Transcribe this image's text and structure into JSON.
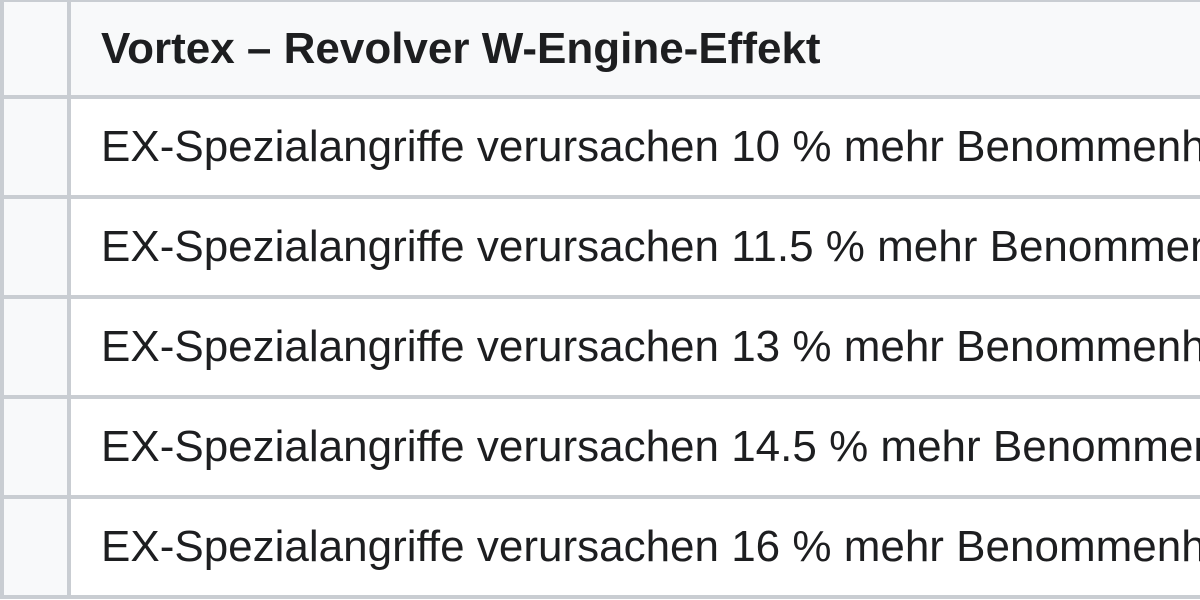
{
  "table": {
    "header": "Vortex – Revolver W-Engine-Effekt",
    "rows": [
      {
        "text": "EX-Spezialangriffe verursachen 10 % mehr Benommenh"
      },
      {
        "text": "EX-Spezialangriffe verursachen 11.5 % mehr Benommen"
      },
      {
        "text": "EX-Spezialangriffe verursachen 13 % mehr Benommenh"
      },
      {
        "text": "EX-Spezialangriffe verursachen 14.5 % mehr Benommen"
      },
      {
        "text": "EX-Spezialangriffe verursachen 16 % mehr Benommenh"
      }
    ],
    "colors": {
      "header_bg": "#f8f9fa",
      "row_bg": "#ffffff",
      "border": "#c9cdd2",
      "text": "#1d1e20"
    }
  }
}
